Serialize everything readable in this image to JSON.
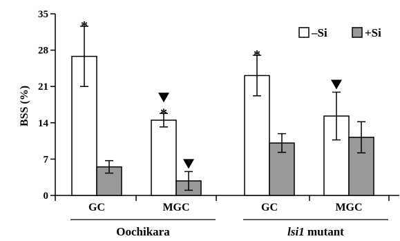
{
  "chart_data": {
    "type": "bar",
    "ylabel": "BSS (%)",
    "ylim": [
      0,
      35
    ],
    "yticks": [
      0,
      7,
      14,
      21,
      28,
      35
    ],
    "groups": [
      {
        "name": "Oochikara",
        "name_rest": "",
        "categories": [
          "GC",
          "MGC"
        ]
      },
      {
        "name": "lsi1",
        "name_rest": " mutant",
        "categories": [
          "GC",
          "MGC"
        ]
      }
    ],
    "series": [
      {
        "name": "–Si",
        "color": "#ffffff",
        "values": [
          26.8,
          14.5,
          23.1,
          15.3
        ],
        "errors": [
          5.8,
          1.3,
          3.9,
          4.6
        ],
        "markers": [
          "*",
          "▼*",
          "*",
          "▼"
        ]
      },
      {
        "name": "+Si",
        "color": "#999999",
        "values": [
          5.5,
          2.8,
          10.1,
          11.2
        ],
        "errors": [
          1.2,
          1.8,
          1.8,
          3.0
        ],
        "markers": [
          "",
          "▼",
          "",
          ""
        ]
      }
    ],
    "legend_position": "top-right",
    "grid": false
  }
}
